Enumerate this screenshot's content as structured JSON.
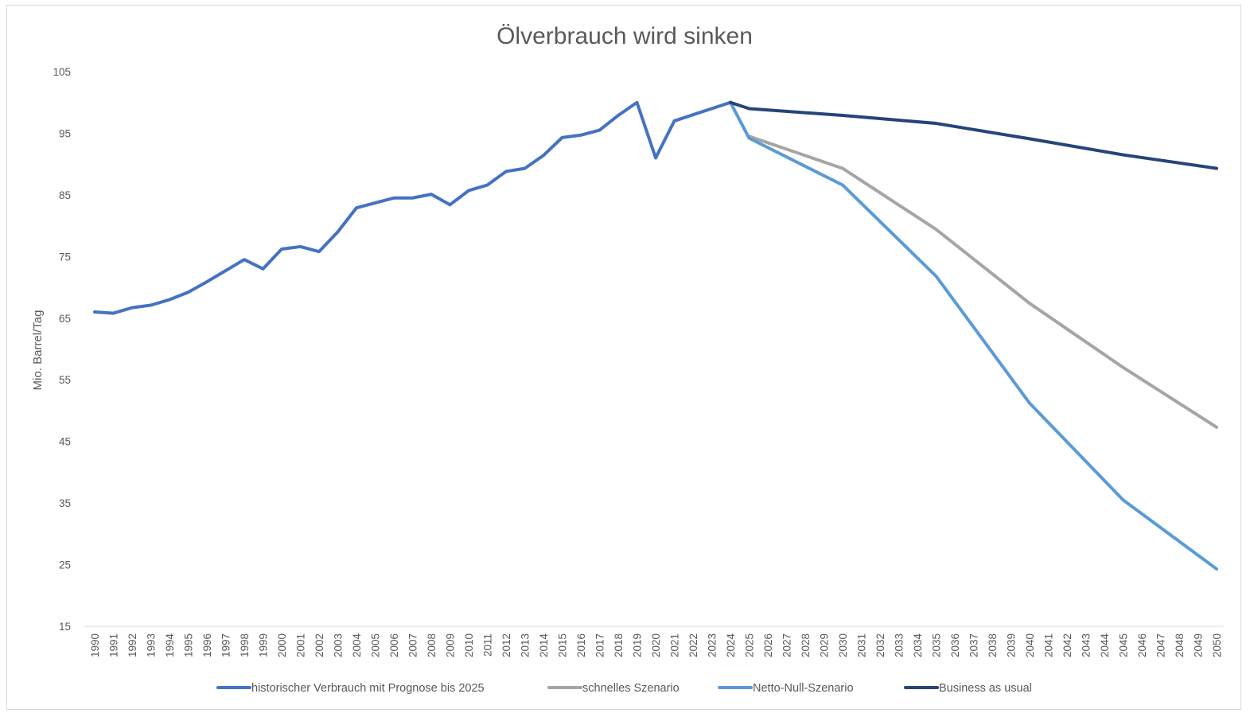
{
  "chart_data": {
    "type": "line",
    "title": "Ölverbrauch wird sinken",
    "xlabel": "",
    "ylabel": "Mio. Barrel/Tag",
    "ylim": [
      15,
      105
    ],
    "yticks": [
      15,
      25,
      35,
      45,
      55,
      65,
      75,
      85,
      95,
      105
    ],
    "grid": false,
    "legend_position": "bottom",
    "categories": [
      "1990",
      "1991",
      "1992",
      "1993",
      "1994",
      "1995",
      "1996",
      "1997",
      "1998",
      "1999",
      "2000",
      "2001",
      "2002",
      "2003",
      "2004",
      "2005",
      "2006",
      "2007",
      "2008",
      "2009",
      "2010",
      "2011",
      "2012",
      "2013",
      "2014",
      "2015",
      "2016",
      "2017",
      "2018",
      "2019",
      "2020",
      "2021",
      "2022",
      "2023",
      "2024",
      "2025",
      "2026",
      "2027",
      "2028",
      "2029",
      "2030",
      "2031",
      "2032",
      "2033",
      "2034",
      "2035",
      "2036",
      "2037",
      "2038",
      "2039",
      "2040",
      "2041",
      "2042",
      "2043",
      "2044",
      "2045",
      "2046",
      "2047",
      "2048",
      "2049",
      "2050"
    ],
    "series": [
      {
        "name": "historischer Verbrauch mit Prognose bis 2025",
        "color": "#4472c4",
        "points": [
          [
            "1990",
            66.0
          ],
          [
            "1991",
            65.8
          ],
          [
            "1992",
            66.7
          ],
          [
            "1993",
            67.1
          ],
          [
            "1994",
            68.0
          ],
          [
            "1995",
            69.2
          ],
          [
            "1996",
            70.9
          ],
          [
            "1997",
            72.7
          ],
          [
            "1998",
            74.5
          ],
          [
            "1999",
            73.0
          ],
          [
            "2000",
            76.2
          ],
          [
            "2001",
            76.6
          ],
          [
            "2002",
            75.8
          ],
          [
            "2003",
            79.0
          ],
          [
            "2004",
            82.9
          ],
          [
            "2005",
            83.7
          ],
          [
            "2006",
            84.5
          ],
          [
            "2007",
            84.5
          ],
          [
            "2008",
            85.1
          ],
          [
            "2009",
            83.4
          ],
          [
            "2010",
            85.7
          ],
          [
            "2011",
            86.6
          ],
          [
            "2012",
            88.8
          ],
          [
            "2013",
            89.3
          ],
          [
            "2014",
            91.4
          ],
          [
            "2015",
            94.3
          ],
          [
            "2016",
            94.7
          ],
          [
            "2017",
            95.5
          ],
          [
            "2018",
            97.9
          ],
          [
            "2019",
            100.0
          ],
          [
            "2020",
            91.0
          ],
          [
            "2021",
            97.0
          ],
          [
            "2022",
            98.0
          ],
          [
            "2023",
            99.0
          ],
          [
            "2024",
            100.0
          ]
        ]
      },
      {
        "name": "schnelles Szenario",
        "color": "#a5a5a5",
        "points": [
          [
            "2025",
            94.5
          ],
          [
            "2030",
            89.3
          ],
          [
            "2035",
            79.4
          ],
          [
            "2040",
            67.4
          ],
          [
            "2045",
            57.0
          ],
          [
            "2050",
            47.3
          ]
        ]
      },
      {
        "name": "Netto-Null-Szenario",
        "color": "#5b9bd5",
        "points": [
          [
            "2024",
            100.0
          ],
          [
            "2025",
            94.2
          ],
          [
            "2030",
            86.6
          ],
          [
            "2035",
            71.8
          ],
          [
            "2040",
            51.2
          ],
          [
            "2045",
            35.5
          ],
          [
            "2050",
            24.3
          ]
        ]
      },
      {
        "name": "Business as usual",
        "color": "#264478",
        "points": [
          [
            "2024",
            100.0
          ],
          [
            "2025",
            99.0
          ],
          [
            "2030",
            97.9
          ],
          [
            "2035",
            96.6
          ],
          [
            "2040",
            94.1
          ],
          [
            "2045",
            91.5
          ],
          [
            "2050",
            89.3
          ]
        ]
      }
    ]
  }
}
